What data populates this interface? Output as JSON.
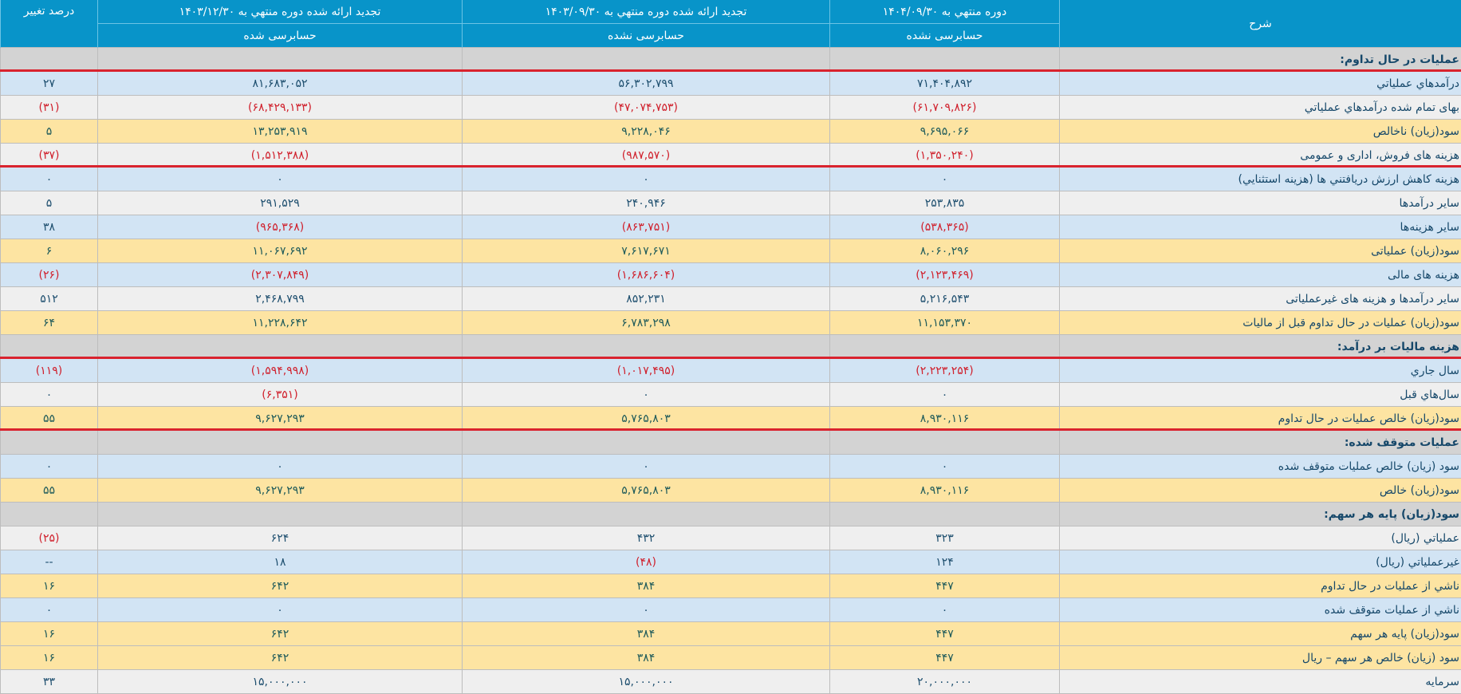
{
  "header": {
    "desc_label": "شرح",
    "columns": [
      {
        "title": "دوره منتهي به ۱۴۰۴/۰۹/۳۰",
        "status": "حسابرسی نشده"
      },
      {
        "title": "تجدید ارائه شده دوره منتهي به ۱۴۰۳/۰۹/۳۰",
        "status": "حسابرسی نشده"
      },
      {
        "title": "تجدید ارائه شده دوره منتهي به ۱۴۰۳/۱۲/۳۰",
        "status": "حسابرسی شده"
      }
    ],
    "pct_label": "درصد تغییر"
  },
  "colors": {
    "header_bg": "#0894c9",
    "row_blue": "#d2e4f4",
    "row_gray": "#efefef",
    "row_yellow": "#fde4a2",
    "row_section": "#d3d3d3",
    "negative": "#d0202c",
    "annotation_line": "#d9232e"
  },
  "rows": [
    {
      "type": "section",
      "desc": "عملیات در حال تداوم:",
      "v1": "",
      "v2": "",
      "v3": "",
      "pct": ""
    },
    {
      "type": "blue",
      "desc": "درآمدهاي عملياتي",
      "v1": "۷۱,۴۰۴,۸۹۲",
      "v2": "۵۶,۳۰۲,۷۹۹",
      "v3": "۸۱,۶۸۳,۰۵۲",
      "pct": "۲۷"
    },
    {
      "type": "gray",
      "desc": "بهای تمام شده درآمدهاي عملياتي",
      "v1": "(۶۱,۷۰۹,۸۲۶)",
      "v2": "(۴۷,۰۷۴,۷۵۳)",
      "v3": "(۶۸,۴۲۹,۱۳۳)",
      "pct": "(۳۱)"
    },
    {
      "type": "yellow",
      "desc": "سود(زيان) ناخالص",
      "v1": "۹,۶۹۵,۰۶۶",
      "v2": "۹,۲۲۸,۰۴۶",
      "v3": "۱۳,۲۵۳,۹۱۹",
      "pct": "۵"
    },
    {
      "type": "gray",
      "desc": "هزینه های فروش، اداری و عمومی",
      "v1": "(۱,۳۵۰,۲۴۰)",
      "v2": "(۹۸۷,۵۷۰)",
      "v3": "(۱,۵۱۲,۳۸۸)",
      "pct": "(۳۷)"
    },
    {
      "type": "blue",
      "desc": "هزينه کاهش ارزش دريافتني ها (هزينه استثنايي)",
      "v1": "۰",
      "v2": "۰",
      "v3": "۰",
      "pct": "۰"
    },
    {
      "type": "gray",
      "desc": "ساير درآمدها",
      "v1": "۲۵۳,۸۳۵",
      "v2": "۲۴۰,۹۴۶",
      "v3": "۲۹۱,۵۲۹",
      "pct": "۵"
    },
    {
      "type": "blue",
      "desc": "ساير هزینه‌ها",
      "v1": "(۵۳۸,۳۶۵)",
      "v2": "(۸۶۳,۷۵۱)",
      "v3": "(۹۶۵,۳۶۸)",
      "pct": "۳۸"
    },
    {
      "type": "yellow",
      "desc": "سود(زيان) عملياتی",
      "v1": "۸,۰۶۰,۲۹۶",
      "v2": "۷,۶۱۷,۶۷۱",
      "v3": "۱۱,۰۶۷,۶۹۲",
      "pct": "۶"
    },
    {
      "type": "blue",
      "desc": "هزینه های مالی",
      "v1": "(۲,۱۲۳,۴۶۹)",
      "v2": "(۱,۶۸۶,۶۰۴)",
      "v3": "(۲,۳۰۷,۸۴۹)",
      "pct": "(۲۶)"
    },
    {
      "type": "gray",
      "desc": "ساير درآمدها و هزینه های غیرعملیاتی",
      "v1": "۵,۲۱۶,۵۴۳",
      "v2": "۸۵۲,۲۳۱",
      "v3": "۲,۴۶۸,۷۹۹",
      "pct": "۵۱۲"
    },
    {
      "type": "yellow",
      "desc": "سود(زيان) عمليات در حال تداوم قبل از ماليات",
      "v1": "۱۱,۱۵۳,۳۷۰",
      "v2": "۶,۷۸۳,۲۹۸",
      "v3": "۱۱,۲۲۸,۶۴۲",
      "pct": "۶۴"
    },
    {
      "type": "section",
      "desc": "هزينه ماليات بر درآمد:",
      "v1": "",
      "v2": "",
      "v3": "",
      "pct": ""
    },
    {
      "type": "blue",
      "desc": "سال جاري",
      "v1": "(۲,۲۲۳,۲۵۴)",
      "v2": "(۱,۰۱۷,۴۹۵)",
      "v3": "(۱,۵۹۴,۹۹۸)",
      "pct": "(۱۱۹)"
    },
    {
      "type": "gray",
      "desc": "سال‌هاي قبل",
      "v1": "۰",
      "v2": "۰",
      "v3": "(۶,۳۵۱)",
      "pct": "۰"
    },
    {
      "type": "yellow",
      "desc": "سود(زيان) خالص عمليات در حال تداوم",
      "v1": "۸,۹۳۰,۱۱۶",
      "v2": "۵,۷۶۵,۸۰۳",
      "v3": "۹,۶۲۷,۲۹۳",
      "pct": "۵۵"
    },
    {
      "type": "section",
      "desc": "عمليات متوقف شده:",
      "v1": "",
      "v2": "",
      "v3": "",
      "pct": ""
    },
    {
      "type": "blue",
      "desc": "سود (زيان) خالص عمليات متوقف شده",
      "v1": "۰",
      "v2": "۰",
      "v3": "۰",
      "pct": "۰"
    },
    {
      "type": "yellow",
      "desc": "سود(زيان) خالص",
      "v1": "۸,۹۳۰,۱۱۶",
      "v2": "۵,۷۶۵,۸۰۳",
      "v3": "۹,۶۲۷,۲۹۳",
      "pct": "۵۵"
    },
    {
      "type": "section",
      "desc": "سود(زيان) پايه هر سهم:",
      "v1": "",
      "v2": "",
      "v3": "",
      "pct": ""
    },
    {
      "type": "gray",
      "desc": "عملياتي (ريال)",
      "v1": "۳۲۳",
      "v2": "۴۳۲",
      "v3": "۶۲۴",
      "pct": "(۲۵)"
    },
    {
      "type": "blue",
      "desc": "غيرعملياتي (ريال)",
      "v1": "۱۲۴",
      "v2": "(۴۸)",
      "v3": "۱۸",
      "pct": "--"
    },
    {
      "type": "yellow",
      "desc": "ناشي از عمليات در حال تداوم",
      "v1": "۴۴۷",
      "v2": "۳۸۴",
      "v3": "۶۴۲",
      "pct": "۱۶"
    },
    {
      "type": "blue",
      "desc": "ناشي از عمليات متوقف شده",
      "v1": "۰",
      "v2": "۰",
      "v3": "۰",
      "pct": "۰"
    },
    {
      "type": "yellow",
      "desc": "سود(زيان) پايه هر سهم",
      "v1": "۴۴۷",
      "v2": "۳۸۴",
      "v3": "۶۴۲",
      "pct": "۱۶"
    },
    {
      "type": "yellow",
      "desc": "سود (زيان) خالص هر سهم – ريال",
      "v1": "۴۴۷",
      "v2": "۳۸۴",
      "v3": "۶۴۲",
      "pct": "۱۶"
    },
    {
      "type": "gray",
      "desc": "سرمايه",
      "v1": "۲۰,۰۰۰,۰۰۰",
      "v2": "۱۵,۰۰۰,۰۰۰",
      "v3": "۱۵,۰۰۰,۰۰۰",
      "pct": "۳۳"
    }
  ],
  "annotations": {
    "red_underlines_after_rows": [
      0,
      4,
      12,
      15
    ]
  }
}
